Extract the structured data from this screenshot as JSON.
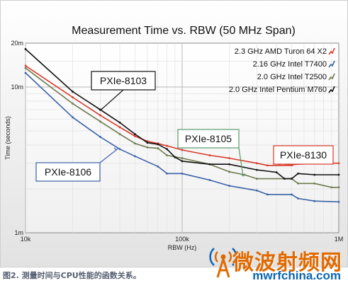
{
  "chart_data": {
    "type": "line",
    "title": "Measurement Time vs. RBW (50 MHz Span)",
    "xlabel": "RBW (Hz)",
    "ylabel": "Time (seconds)",
    "x_scale": "log",
    "y_scale": "log",
    "xlim": [
      10000,
      1000000
    ],
    "ylim": [
      1,
      20
    ],
    "x_ticks": [
      {
        "value": 10000,
        "label": "10k"
      },
      {
        "value": 100000,
        "label": "100k"
      },
      {
        "value": 1000000,
        "label": "1M"
      }
    ],
    "y_ticks": [
      {
        "value": 1,
        "label": "1m"
      },
      {
        "value": 10,
        "label": "10m"
      },
      {
        "value": 20,
        "label": "20m"
      }
    ],
    "grid": true,
    "legend_position": "top-right",
    "series": [
      {
        "name": "2.3 GHz AMD Turon 64 X2",
        "color": "#d83a2a",
        "points": [
          [
            10000,
            14
          ],
          [
            20000,
            8.5
          ],
          [
            30000,
            6.4
          ],
          [
            40000,
            5.3
          ],
          [
            50000,
            4.6
          ],
          [
            60000,
            4.25
          ],
          [
            70000,
            4.1
          ],
          [
            80000,
            3.95
          ],
          [
            100000,
            3.7
          ],
          [
            150000,
            3.4
          ],
          [
            200000,
            3.25
          ],
          [
            300000,
            3.0
          ],
          [
            350000,
            2.9
          ],
          [
            500000,
            2.9
          ],
          [
            550000,
            3.0
          ],
          [
            700000,
            3.0
          ],
          [
            1000000,
            3.0
          ]
        ]
      },
      {
        "name": "2.16 GHz Intel T7400",
        "color": "#3a62a8",
        "points": [
          [
            10000,
            12.5
          ],
          [
            20000,
            6.2
          ],
          [
            30000,
            4.55
          ],
          [
            40000,
            3.75
          ],
          [
            50000,
            3.35
          ],
          [
            70000,
            2.85
          ],
          [
            80000,
            2.55
          ],
          [
            100000,
            2.55
          ],
          [
            150000,
            2.3
          ],
          [
            200000,
            2.1
          ],
          [
            300000,
            1.95
          ],
          [
            350000,
            1.83
          ],
          [
            500000,
            1.83
          ],
          [
            550000,
            1.72
          ],
          [
            700000,
            1.65
          ],
          [
            1000000,
            1.63
          ]
        ]
      },
      {
        "name": "2.0 GHz Intel T2500",
        "color": "#6d7a4c",
        "points": [
          [
            10000,
            13.5
          ],
          [
            20000,
            7.7
          ],
          [
            30000,
            5.8
          ],
          [
            40000,
            4.75
          ],
          [
            50000,
            4.1
          ],
          [
            60000,
            3.85
          ],
          [
            70000,
            3.8
          ],
          [
            80000,
            3.4
          ],
          [
            100000,
            3.25
          ],
          [
            150000,
            2.95
          ],
          [
            200000,
            2.62
          ],
          [
            250000,
            2.5
          ],
          [
            300000,
            2.35
          ],
          [
            500000,
            2.35
          ],
          [
            550000,
            2.18
          ],
          [
            700000,
            2.18
          ],
          [
            900000,
            2.05
          ],
          [
            1000000,
            2.05
          ]
        ]
      },
      {
        "name": "2.0 GHz Intel Pentium M760",
        "color": "#111111",
        "points": [
          [
            10000,
            18.2
          ],
          [
            20000,
            9.3
          ],
          [
            30000,
            7.0
          ],
          [
            40000,
            5.7
          ],
          [
            50000,
            4.75
          ],
          [
            60000,
            4.15
          ],
          [
            70000,
            4.05
          ],
          [
            80000,
            3.75
          ],
          [
            90000,
            3.3
          ],
          [
            100000,
            3.1
          ],
          [
            150000,
            2.95
          ],
          [
            200000,
            2.95
          ],
          [
            300000,
            2.7
          ],
          [
            400000,
            2.6
          ],
          [
            450000,
            2.35
          ],
          [
            500000,
            2.35
          ],
          [
            550000,
            2.55
          ],
          [
            700000,
            2.5
          ],
          [
            1000000,
            2.5
          ]
        ]
      }
    ],
    "annotations": [
      {
        "text": "PXIe-8103",
        "series": 3,
        "anchor": [
          30000,
          6.9
        ],
        "box_color": "#111111"
      },
      {
        "text": "PXIe-8106",
        "series": 1,
        "anchor": [
          38000,
          3.7
        ],
        "box_color": "#3a62a8"
      },
      {
        "text": "PXIe-8105",
        "series": 2,
        "anchor": [
          245000,
          2.45
        ],
        "box_color": "#5a9a6a"
      },
      {
        "text": "PXIe-8130",
        "series": 0,
        "anchor": [
          420000,
          2.9
        ],
        "box_color": "#d83a2a"
      }
    ]
  },
  "caption": "图2. 测量时间与CPU性能的函数关系。",
  "watermark": {
    "chinese": "微波射频网",
    "url": "mwrfchina.com",
    "logo_icon": "broadcast-tower-icon"
  }
}
